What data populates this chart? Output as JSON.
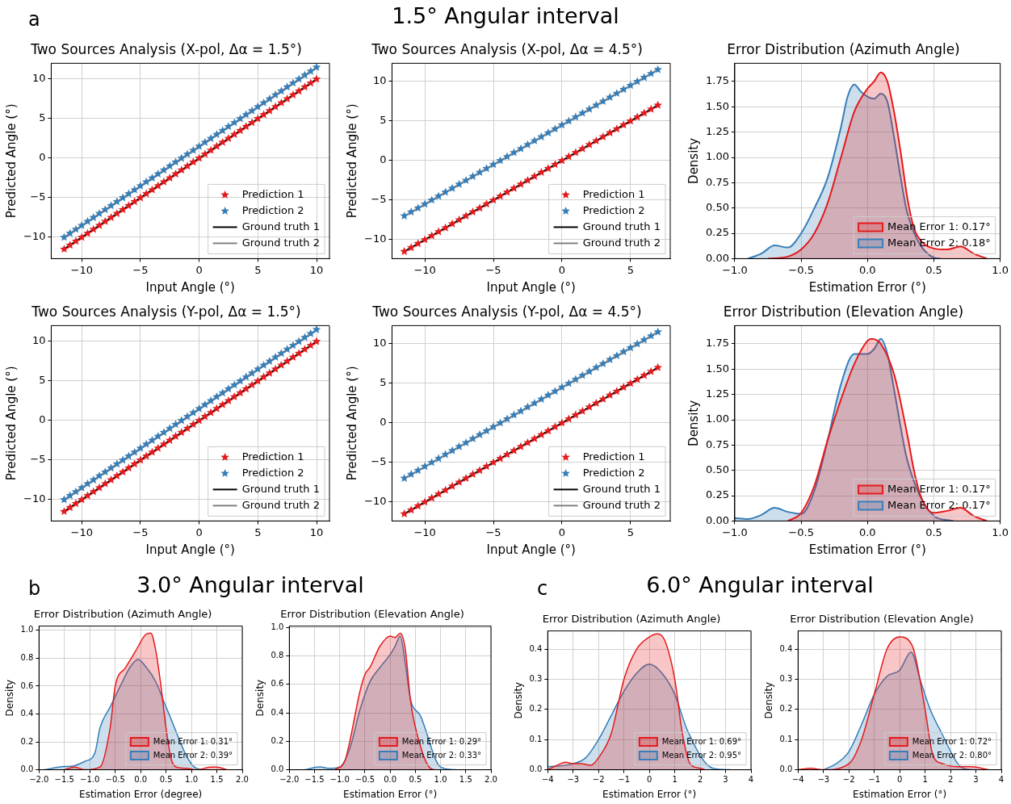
{
  "chart_data": [
    {
      "type": "other",
      "title": "1.5° Angular interval",
      "annotations": [
        "a"
      ]
    },
    {
      "type": "scatter",
      "title": "Two Sources Analysis (X-pol, Δα = 1.5°)",
      "xlabel": "Input Angle (°)",
      "ylabel": "Predicted Angle (°)",
      "xlim": [
        -12.6,
        11.1
      ],
      "ylim": [
        -12.7,
        12.0
      ],
      "xticks": [
        {
          "value": -10,
          "label": "−10"
        },
        {
          "value": -5,
          "label": "−5"
        },
        0,
        5,
        10
      ],
      "yticks": [
        {
          "value": -10,
          "label": "−10"
        },
        {
          "value": -5,
          "label": "−5"
        },
        0,
        5,
        10
      ],
      "grid": true,
      "legend": "bottom right",
      "marker": "star",
      "x": [
        -11.5,
        -11,
        -10.5,
        -10,
        -9.5,
        -9,
        -8.5,
        -8,
        -7.5,
        -7,
        -6.5,
        -6,
        -5.5,
        -5,
        -4.5,
        -4,
        -3.5,
        -3,
        -2.5,
        -2,
        -1.5,
        -1,
        -0.5,
        0,
        0.5,
        1,
        1.5,
        2,
        2.5,
        3,
        3.5,
        4,
        4.5,
        5,
        5.5,
        6,
        6.5,
        7,
        7.5,
        8,
        8.5,
        9,
        9.5,
        10
      ],
      "series": [
        {
          "name": "Prediction 1",
          "color": "#e41a1c",
          "values": [
            -11.5,
            -11,
            -10.5,
            -10,
            -9.5,
            -9,
            -8.5,
            -8,
            -7.5,
            -7,
            -6.5,
            -6,
            -5.5,
            -5,
            -4.5,
            -4,
            -3.5,
            -3,
            -2.5,
            -2,
            -1.5,
            -1,
            -0.5,
            0,
            0.5,
            1,
            1.5,
            2,
            2.5,
            3,
            3.5,
            4,
            4.5,
            5,
            5.5,
            6,
            6.5,
            7,
            7.5,
            8,
            8.5,
            9,
            9.5,
            10
          ]
        },
        {
          "name": "Prediction 2",
          "color": "#377eb8",
          "values": [
            -10,
            -9.5,
            -9,
            -8.5,
            -8,
            -7.5,
            -7,
            -6.5,
            -6,
            -5.5,
            -5,
            -4.5,
            -4,
            -3.5,
            -3,
            -2.5,
            -2,
            -1.5,
            -1,
            -0.5,
            0,
            0.5,
            1,
            1.5,
            2,
            2.5,
            3,
            3.5,
            4,
            4.5,
            5,
            5.5,
            6,
            6.5,
            7,
            7.5,
            8,
            8.5,
            9,
            9.5,
            10,
            10.5,
            11,
            11.5
          ]
        },
        {
          "name": "Ground truth 1",
          "type": "line",
          "marker": "none",
          "color": "#000000",
          "x": [
            -11.5,
            10
          ],
          "values": [
            -11.5,
            10
          ]
        },
        {
          "name": "Ground truth 2",
          "type": "line",
          "marker": "none",
          "color": "#808080",
          "x": [
            -11.5,
            10
          ],
          "values": [
            -10,
            11.5
          ]
        }
      ]
    },
    {
      "type": "scatter",
      "title": "Two Sources Analysis (X-pol, Δα = 4.5°)",
      "xlabel": "Input Angle (°)",
      "ylabel": "Predicted Angle (°)",
      "xlim": [
        -12.4,
        7.9
      ],
      "ylim": [
        -12.4,
        12.3
      ],
      "xticks": [
        {
          "value": -10,
          "label": "−10"
        },
        {
          "value": -5,
          "label": "−5"
        },
        0,
        5
      ],
      "yticks": [
        {
          "value": -10,
          "label": "−10"
        },
        {
          "value": -5,
          "label": "−5"
        },
        0,
        5,
        10
      ],
      "grid": true,
      "legend": "bottom right",
      "marker": "star",
      "x": [
        -11.5,
        -11,
        -10.5,
        -10,
        -9.5,
        -9,
        -8.5,
        -8,
        -7.5,
        -7,
        -6.5,
        -6,
        -5.5,
        -5,
        -4.5,
        -4,
        -3.5,
        -3,
        -2.5,
        -2,
        -1.5,
        -1,
        -0.5,
        0,
        0.5,
        1,
        1.5,
        2,
        2.5,
        3,
        3.5,
        4,
        4.5,
        5,
        5.5,
        6,
        6.5,
        7
      ],
      "series": [
        {
          "name": "Prediction 1",
          "color": "#e41a1c",
          "values": [
            -11.5,
            -11,
            -10.5,
            -10,
            -9.5,
            -9,
            -8.5,
            -8,
            -7.5,
            -7,
            -6.5,
            -6,
            -5.5,
            -5,
            -4.5,
            -4,
            -3.5,
            -3,
            -2.5,
            -2,
            -1.5,
            -1,
            -0.5,
            0,
            0.5,
            1,
            1.5,
            2,
            2.5,
            3,
            3.5,
            4,
            4.5,
            5,
            5.5,
            6,
            6.5,
            7
          ]
        },
        {
          "name": "Prediction 2",
          "color": "#377eb8",
          "values": [
            -7,
            -6.5,
            -6,
            -5.5,
            -5,
            -4.5,
            -4,
            -3.5,
            -3,
            -2.5,
            -2,
            -1.5,
            -1,
            -0.5,
            0,
            0.5,
            1,
            1.5,
            2,
            2.5,
            3,
            3.5,
            4,
            4.5,
            5,
            5.5,
            6,
            6.5,
            7,
            7.5,
            8,
            8.5,
            9,
            9.5,
            10,
            10.5,
            11,
            11.5
          ]
        },
        {
          "name": "Ground truth 1",
          "type": "line",
          "marker": "none",
          "color": "#000000",
          "x": [
            -11.5,
            7
          ],
          "values": [
            -11.5,
            7
          ]
        },
        {
          "name": "Ground truth 2",
          "type": "line",
          "marker": "none",
          "color": "#808080",
          "x": [
            -11.5,
            7
          ],
          "values": [
            -7,
            11.5
          ]
        }
      ]
    },
    {
      "type": "area",
      "title": "Error Distribution (Azimuth Angle)",
      "xlabel": "Estimation Error (°)",
      "ylabel": "Density",
      "xlim": [
        -1,
        1
      ],
      "ylim": [
        0,
        1.93
      ],
      "xticks": [
        {
          "value": -1,
          "label": "−1.0"
        },
        {
          "value": -0.5,
          "label": "−0.5"
        },
        {
          "value": 0,
          "label": "0.0"
        },
        0.5,
        {
          "value": 1,
          "label": "1.0"
        }
      ],
      "yticks": [
        {
          "value": 0,
          "label": "0.00"
        },
        0.25,
        {
          "value": 0.5,
          "label": "0.50"
        },
        0.75,
        {
          "value": 1,
          "label": "1.00"
        },
        1.25,
        {
          "value": 1.5,
          "label": "1.50"
        },
        1.75
      ],
      "grid": true,
      "legend": "bottom right",
      "series": [
        {
          "name": "Mean Error 1: 0.17°",
          "color": "#e41a1c",
          "x": [
            -0.75,
            -0.6,
            -0.5,
            -0.4,
            -0.3,
            -0.2,
            -0.1,
            0,
            0.05,
            0.1,
            0.15,
            0.2,
            0.25,
            0.3,
            0.35,
            0.4,
            0.5,
            0.6,
            0.7,
            0.8,
            0.9
          ],
          "values": [
            0,
            0.02,
            0.09,
            0.25,
            0.55,
            1.0,
            1.45,
            1.68,
            1.75,
            1.84,
            1.75,
            1.45,
            1.05,
            0.6,
            0.3,
            0.18,
            0.1,
            0.09,
            0.12,
            0.05,
            0
          ]
        },
        {
          "name": "Mean Error 2: 0.18°",
          "color": "#377eb8",
          "x": [
            -0.9,
            -0.8,
            -0.7,
            -0.6,
            -0.5,
            -0.4,
            -0.3,
            -0.2,
            -0.15,
            -0.1,
            -0.05,
            0,
            0.05,
            0.1,
            0.15,
            0.2,
            0.25,
            0.3,
            0.35,
            0.4,
            0.5,
            0.55
          ],
          "values": [
            0,
            0.05,
            0.13,
            0.11,
            0.25,
            0.5,
            0.8,
            1.3,
            1.6,
            1.72,
            1.65,
            1.6,
            1.58,
            1.63,
            1.55,
            1.2,
            0.8,
            0.45,
            null,
            null,
            0.01,
            0
          ]
        }
      ]
    },
    {
      "type": "scatter",
      "title": "Two Sources Analysis (Y-pol, Δα = 1.5°)",
      "xlabel": "Input Angle (°)",
      "ylabel": "Predicted Angle (°)",
      "xlim": [
        -12.6,
        11.1
      ],
      "ylim": [
        -12.7,
        12.0
      ],
      "xticks": [
        {
          "value": -10,
          "label": "−10"
        },
        {
          "value": -5,
          "label": "−5"
        },
        0,
        5,
        10
      ],
      "yticks": [
        {
          "value": -10,
          "label": "−10"
        },
        {
          "value": -5,
          "label": "−5"
        },
        0,
        5,
        10
      ],
      "grid": true,
      "legend": "bottom right",
      "marker": "star",
      "x": [
        -11.5,
        -11,
        -10.5,
        -10,
        -9.5,
        -9,
        -8.5,
        -8,
        -7.5,
        -7,
        -6.5,
        -6,
        -5.5,
        -5,
        -4.5,
        -4,
        -3.5,
        -3,
        -2.5,
        -2,
        -1.5,
        -1,
        -0.5,
        0,
        0.5,
        1,
        1.5,
        2,
        2.5,
        3,
        3.5,
        4,
        4.5,
        5,
        5.5,
        6,
        6.5,
        7,
        7.5,
        8,
        8.5,
        9,
        9.5,
        10
      ],
      "series": [
        {
          "name": "Prediction 1",
          "color": "#e41a1c",
          "values": [
            -11.5,
            -11,
            -10.5,
            -10,
            -9.5,
            -9,
            -8.5,
            -8,
            -7.5,
            -7,
            -6.5,
            -6,
            -5.5,
            -5,
            -4.5,
            -4,
            -3.5,
            -3,
            -2.5,
            -2,
            -1.5,
            -1,
            -0.5,
            0,
            0.5,
            1,
            1.5,
            2,
            2.5,
            3,
            3.5,
            4,
            4.5,
            5,
            5.5,
            6,
            6.5,
            7,
            7.5,
            8,
            8.5,
            9,
            9.5,
            10
          ]
        },
        {
          "name": "Prediction 2",
          "color": "#377eb8",
          "values": [
            -10,
            -9.5,
            -9,
            -8.5,
            -8,
            -7.5,
            -7,
            -6.5,
            -6,
            -5.5,
            -5,
            -4.5,
            -4,
            -3.5,
            -3,
            -2.5,
            -2,
            -1.5,
            -1,
            -0.5,
            0,
            0.5,
            1,
            1.5,
            2,
            2.5,
            3,
            3.5,
            4,
            4.5,
            5,
            5.5,
            6,
            6.5,
            7,
            7.5,
            8,
            8.5,
            9,
            9.5,
            10,
            10.5,
            11,
            11.5
          ]
        },
        {
          "name": "Ground truth 1",
          "type": "line",
          "marker": "none",
          "color": "#000000",
          "x": [
            -11.5,
            10
          ],
          "values": [
            -11.5,
            10
          ]
        },
        {
          "name": "Ground truth 2",
          "type": "line",
          "marker": "none",
          "color": "#808080",
          "x": [
            -11.5,
            10
          ],
          "values": [
            -10,
            11.5
          ]
        }
      ]
    },
    {
      "type": "scatter",
      "title": "Two Sources Analysis (Y-pol, Δα = 4.5°)",
      "xlabel": "Input Angle (°)",
      "ylabel": "Predicted Angle (°)",
      "xlim": [
        -12.4,
        7.9
      ],
      "ylim": [
        -12.4,
        12.3
      ],
      "xticks": [
        {
          "value": -10,
          "label": "−10"
        },
        {
          "value": -5,
          "label": "−5"
        },
        0,
        5
      ],
      "yticks": [
        {
          "value": -10,
          "label": "−10"
        },
        {
          "value": -5,
          "label": "−5"
        },
        0,
        5,
        10
      ],
      "grid": true,
      "legend": "bottom right",
      "marker": "star",
      "x": [
        -11.5,
        -11,
        -10.5,
        -10,
        -9.5,
        -9,
        -8.5,
        -8,
        -7.5,
        -7,
        -6.5,
        -6,
        -5.5,
        -5,
        -4.5,
        -4,
        -3.5,
        -3,
        -2.5,
        -2,
        -1.5,
        -1,
        -0.5,
        0,
        0.5,
        1,
        1.5,
        2,
        2.5,
        3,
        3.5,
        4,
        4.5,
        5,
        5.5,
        6,
        6.5,
        7
      ],
      "series": [
        {
          "name": "Prediction 1",
          "color": "#e41a1c",
          "values": [
            -11.5,
            -11,
            -10.5,
            -10,
            -9.5,
            -9,
            -8.5,
            -8,
            -7.5,
            -7,
            -6.5,
            -6,
            -5.5,
            -5,
            -4.5,
            -4,
            -3.5,
            -3,
            -2.5,
            -2,
            -1.5,
            -1,
            -0.5,
            0,
            0.5,
            1,
            1.5,
            2,
            2.5,
            3,
            3.5,
            4,
            4.5,
            5,
            5.5,
            6,
            6.5,
            7
          ]
        },
        {
          "name": "Prediction 2",
          "color": "#377eb8",
          "values": [
            -7,
            -6.5,
            -6,
            -5.5,
            -5,
            -4.5,
            -4,
            -3.5,
            -3,
            -2.5,
            -2,
            -1.5,
            -1,
            -0.5,
            0,
            0.5,
            1,
            1.5,
            2,
            2.5,
            3,
            3.5,
            4,
            4.5,
            5,
            5.5,
            6,
            6.5,
            7,
            7.5,
            8,
            8.5,
            9,
            9.5,
            10,
            10.5,
            11,
            11.5
          ]
        },
        {
          "name": "Ground truth 1",
          "type": "line",
          "marker": "none",
          "color": "#000000",
          "x": [
            -11.5,
            7
          ],
          "values": [
            -11.5,
            7
          ]
        },
        {
          "name": "Ground truth 2",
          "type": "line",
          "marker": "none",
          "color": "#808080",
          "x": [
            -11.5,
            7
          ],
          "values": [
            -7,
            11.5
          ]
        }
      ]
    },
    {
      "type": "area",
      "title": "Error Distribution (Elevation Angle)",
      "xlabel": "Estimation Error (°)",
      "ylabel": "Density",
      "xlim": [
        -1,
        1
      ],
      "ylim": [
        0,
        1.93
      ],
      "xticks": [
        {
          "value": -1,
          "label": "−1.0"
        },
        {
          "value": -0.5,
          "label": "−0.5"
        },
        {
          "value": 0,
          "label": "0.0"
        },
        0.5,
        {
          "value": 1,
          "label": "1.0"
        }
      ],
      "yticks": [
        {
          "value": 0,
          "label": "0.00"
        },
        0.25,
        {
          "value": 0.5,
          "label": "0.50"
        },
        0.75,
        {
          "value": 1,
          "label": "1.00"
        },
        1.25,
        {
          "value": 1.5,
          "label": "1.50"
        },
        1.75
      ],
      "grid": true,
      "legend": "bottom right",
      "series": [
        {
          "name": "Mean Error 1: 0.17°",
          "color": "#e41a1c",
          "x": [
            -0.6,
            -0.5,
            -0.4,
            -0.3,
            -0.2,
            -0.1,
            0,
            0.03,
            0.1,
            0.2,
            0.3,
            0.35,
            0.4,
            0.5,
            0.6,
            0.7,
            0.8,
            0.9
          ],
          "values": [
            0,
            0.08,
            0.35,
            0.8,
            1.2,
            1.55,
            1.78,
            1.8,
            1.75,
            1.45,
            0.85,
            0.5,
            0.25,
            0.08,
            0.1,
            0.13,
            0.05,
            0
          ]
        },
        {
          "name": "Mean Error 2: 0.17°",
          "color": "#377eb8",
          "x": [
            -1,
            -0.9,
            -0.8,
            -0.7,
            -0.6,
            -0.5,
            -0.4,
            -0.3,
            -0.2,
            -0.1,
            0,
            0.05,
            0.1,
            0.15,
            0.2,
            0.3,
            0.4,
            0.5,
            0.6,
            0.65
          ],
          "values": [
            0.03,
            0.02,
            0.06,
            0.13,
            0.09,
            0.07,
            0.3,
            0.8,
            1.35,
            1.65,
            1.65,
            1.7,
            1.8,
            1.65,
            1.3,
            0.6,
            null,
            0.05,
            0.01,
            0
          ]
        }
      ]
    },
    {
      "type": "other",
      "title": "3.0° Angular interval",
      "annotations": [
        "b"
      ]
    },
    {
      "type": "area",
      "title": "Error Distribution (Azimuth Angle)",
      "xlabel": "Estimation Error (degree)",
      "ylabel": "Density",
      "xlim": [
        -2,
        2
      ],
      "ylim": [
        0,
        1.03
      ],
      "xticks": [
        {
          "value": -2,
          "label": "−2.0"
        },
        {
          "value": -1.5,
          "label": "−1.5"
        },
        {
          "value": -1,
          "label": "−1.0"
        },
        {
          "value": -0.5,
          "label": "−0.5"
        },
        {
          "value": 0,
          "label": "0.0"
        },
        0.5,
        {
          "value": 1,
          "label": "1.0"
        },
        1.5,
        {
          "value": 2,
          "label": "2.0"
        }
      ],
      "yticks": [
        {
          "value": 0,
          "label": "0.0"
        },
        0.2,
        0.4,
        0.6,
        0.8,
        {
          "value": 1,
          "label": "1.0"
        }
      ],
      "grid": true,
      "legend": "bottom right",
      "series": [
        {
          "name": "Mean Error 1: 0.31°",
          "color": "#e41a1c",
          "x": [
            -1.5,
            -1.3,
            -1.1,
            -0.8,
            -0.6,
            -0.5,
            -0.3,
            -0.1,
            0.1,
            0.2,
            0.3,
            0.4,
            0.5,
            0.6,
            0.7,
            0.9,
            1.1,
            1.4,
            1.5,
            1.7
          ],
          "values": [
            0,
            0.02,
            0,
            0.02,
            0.3,
            0.6,
            0.73,
            0.85,
            0.97,
            0.98,
            0.85,
            0.6,
            0.3,
            0.08,
            0.02,
            0.01,
            0,
            0.02,
            0.02,
            0
          ]
        },
        {
          "name": "Mean Error 2: 0.39°",
          "color": "#377eb8",
          "x": [
            -1.9,
            -1.6,
            -1.3,
            -1.1,
            -0.9,
            -0.8,
            -0.6,
            -0.4,
            -0.2,
            -0.05,
            0.1,
            0.3,
            0.5,
            0.7,
            0.9,
            1.1,
            1.3
          ],
          "values": [
            0,
            0.02,
            0.03,
            0.06,
            0.12,
            0.3,
            0.45,
            0.6,
            0.74,
            0.79,
            0.74,
            0.63,
            0.45,
            null,
            null,
            0.01,
            0
          ]
        }
      ]
    },
    {
      "type": "area",
      "title": "Error Distribution (Elevation Angle)",
      "xlabel": "Estimation Error (°)",
      "ylabel": "Density",
      "xlim": [
        -2,
        2
      ],
      "ylim": [
        0,
        1.01
      ],
      "xticks": [
        {
          "value": -2,
          "label": "−2.0"
        },
        {
          "value": -1.5,
          "label": "−1.5"
        },
        {
          "value": -1,
          "label": "−1.0"
        },
        {
          "value": -0.5,
          "label": "−0.5"
        },
        {
          "value": 0,
          "label": "0.0"
        },
        0.5,
        {
          "value": 1,
          "label": "1.0"
        },
        1.5,
        {
          "value": 2,
          "label": "2.0"
        }
      ],
      "yticks": [
        {
          "value": 0,
          "label": "0.0"
        },
        0.2,
        0.4,
        0.6,
        0.8,
        {
          "value": 1,
          "label": "1.0"
        }
      ],
      "grid": true,
      "legend": "bottom right",
      "series": [
        {
          "name": "Mean Error 1: 0.29°",
          "color": "#e41a1c",
          "x": [
            -1.1,
            -0.9,
            -0.8,
            -0.6,
            -0.5,
            -0.4,
            -0.2,
            0,
            0.1,
            0.2,
            0.3,
            0.4,
            0.5,
            0.6,
            0.8,
            0.9
          ],
          "values": [
            0,
            0.06,
            0.2,
            0.55,
            0.67,
            0.72,
            0.87,
            0.94,
            0.93,
            0.96,
            0.85,
            0.5,
            0.3,
            null,
            0.01,
            0
          ]
        },
        {
          "name": "Mean Error 2: 0.33°",
          "color": "#377eb8",
          "x": [
            -1.7,
            -1.4,
            -1.2,
            -1,
            -0.8,
            -0.6,
            -0.4,
            -0.2,
            0,
            0.1,
            0.2,
            0.3,
            0.4,
            0.6,
            0.8,
            1,
            1.3
          ],
          "values": [
            0,
            0.02,
            0.01,
            0.02,
            0.15,
            0.42,
            0.62,
            0.72,
            0.81,
            0.87,
            0.94,
            0.75,
            0.5,
            0.38,
            null,
            0.02,
            0
          ]
        }
      ]
    },
    {
      "type": "other",
      "title": "6.0° Angular interval",
      "annotations": [
        "c"
      ]
    },
    {
      "type": "area",
      "title": "Error Distribution (Azimuth Angle)",
      "xlabel": "Estimation Error (°)",
      "ylabel": "Density",
      "xlim": [
        -4,
        4
      ],
      "ylim": [
        0,
        0.46
      ],
      "xticks": [
        {
          "value": -4,
          "label": "−4"
        },
        {
          "value": -3,
          "label": "−3"
        },
        {
          "value": -2,
          "label": "−2"
        },
        {
          "value": -1,
          "label": "−1"
        },
        0,
        1,
        2,
        3,
        4
      ],
      "yticks": [
        {
          "value": 0,
          "label": "0.0"
        },
        0.1,
        0.2,
        0.3,
        0.4
      ],
      "grid": true,
      "legend": "bottom right",
      "series": [
        {
          "name": "Mean Error 1: 0.69°",
          "color": "#e41a1c",
          "x": [
            -4,
            -3.5,
            -3.3,
            -3,
            -2.7,
            -2.3,
            -2,
            -1.5,
            -1,
            -0.5,
            0,
            0.3,
            0.6,
            1,
            1.3,
            1.6,
            2,
            2.2
          ],
          "values": [
            0,
            0.02,
            0.025,
            0.02,
            0.02,
            0.015,
            0.04,
            0.12,
            0.3,
            0.4,
            0.44,
            0.45,
            0.43,
            0.3,
            0.12,
            0.02,
            0.005,
            0
          ]
        },
        {
          "name": "Mean Error 2: 0.95°",
          "color": "#377eb8",
          "x": [
            -4,
            -3,
            -2.5,
            -2,
            -1.5,
            -1,
            -0.5,
            0,
            0.5,
            1,
            1.5,
            2,
            2.5,
            3.2
          ],
          "values": [
            0.01,
            0.02,
            0.04,
            0.1,
            0.18,
            0.26,
            0.32,
            0.35,
            0.32,
            0.25,
            0.13,
            null,
            0.005,
            0
          ]
        }
      ]
    },
    {
      "type": "area",
      "title": "Error Distribution (Elevation Angle)",
      "xlabel": "Estimation Error (°)",
      "ylabel": "Density",
      "xlim": [
        -4,
        4
      ],
      "ylim": [
        0,
        0.46
      ],
      "xticks": [
        {
          "value": -4,
          "label": "−4"
        },
        {
          "value": -3,
          "label": "−3"
        },
        {
          "value": -2,
          "label": "−2"
        },
        {
          "value": -1,
          "label": "−1"
        },
        0,
        1,
        2,
        3,
        4
      ],
      "yticks": [
        {
          "value": 0,
          "label": "0.0"
        },
        0.1,
        0.2,
        0.3,
        0.4
      ],
      "grid": true,
      "legend": "bottom right",
      "series": [
        {
          "name": "Mean Error 1: 0.72°",
          "color": "#e41a1c",
          "x": [
            -4,
            -3.5,
            -3,
            -2,
            -1.5,
            -1,
            -0.5,
            0,
            0.5,
            1,
            1.3,
            1.7,
            2.3,
            2.8,
            3.5
          ],
          "values": [
            0,
            0.005,
            0,
            0.02,
            0.1,
            0.25,
            0.4,
            0.44,
            0.41,
            0.2,
            0.05,
            0.02,
            0.01,
            0.01,
            0
          ]
        },
        {
          "name": "Mean Error 2: 0.80°",
          "color": "#377eb8",
          "x": [
            -3,
            -2.5,
            -2,
            -1.5,
            -1,
            -0.5,
            0,
            0.45,
            0.8,
            1.2,
            1.6,
            2,
            2.5,
            3
          ],
          "values": [
            0,
            0.02,
            0.06,
            0.15,
            0.25,
            0.31,
            0.33,
            0.39,
            0.3,
            0.2,
            0.13,
            null,
            0.005,
            0
          ]
        }
      ]
    }
  ]
}
